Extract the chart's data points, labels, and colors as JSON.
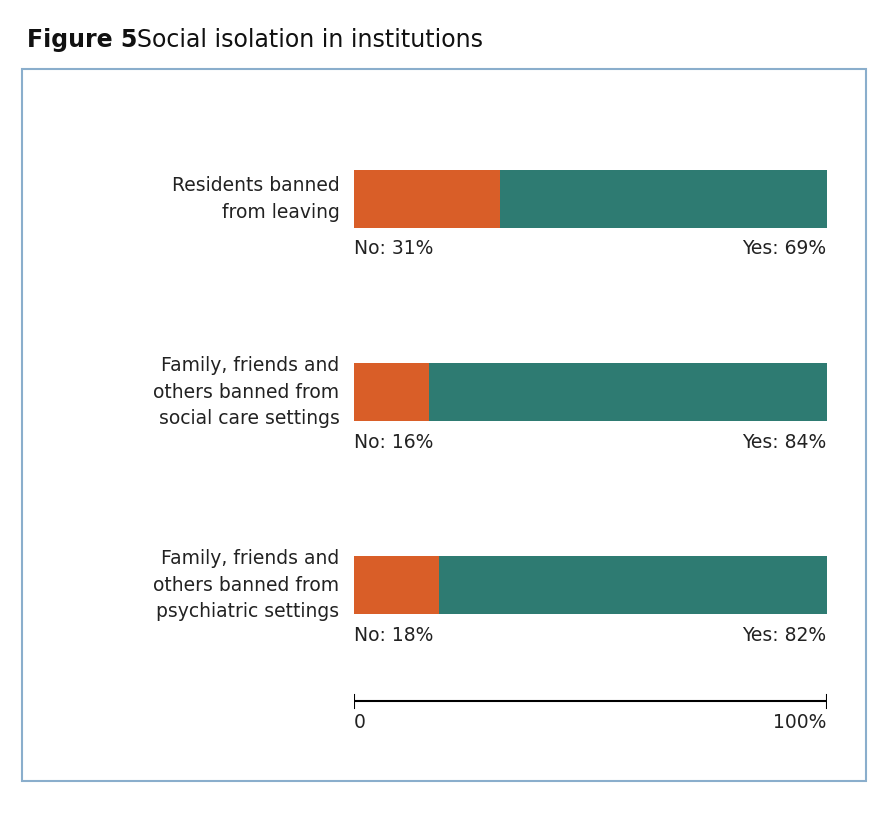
{
  "title_bold": "Figure 5",
  "title_normal": "  Social isolation in institutions",
  "categories": [
    "Residents banned\nfrom leaving",
    "Family, friends and\nothers banned from\nsocial care settings",
    "Family, friends and\nothers banned from\npsychiatric settings"
  ],
  "no_values": [
    31,
    16,
    18
  ],
  "yes_values": [
    69,
    84,
    82
  ],
  "no_labels": [
    "No: 31%",
    "No: 16%",
    "No: 18%"
  ],
  "yes_labels": [
    "Yes: 69%",
    "Yes: 84%",
    "Yes: 82%"
  ],
  "color_no": "#D95E28",
  "color_yes": "#2E7B72",
  "background_color": "#FFFFFF",
  "box_edgecolor": "#8AAECC",
  "text_color": "#222222",
  "xlabel_0": "0",
  "xlabel_100": "100%",
  "bar_height": 0.3,
  "figsize": [
    8.84,
    8.14
  ],
  "dpi": 100,
  "title_bold_color": "#111111",
  "title_normal_color": "#444444"
}
